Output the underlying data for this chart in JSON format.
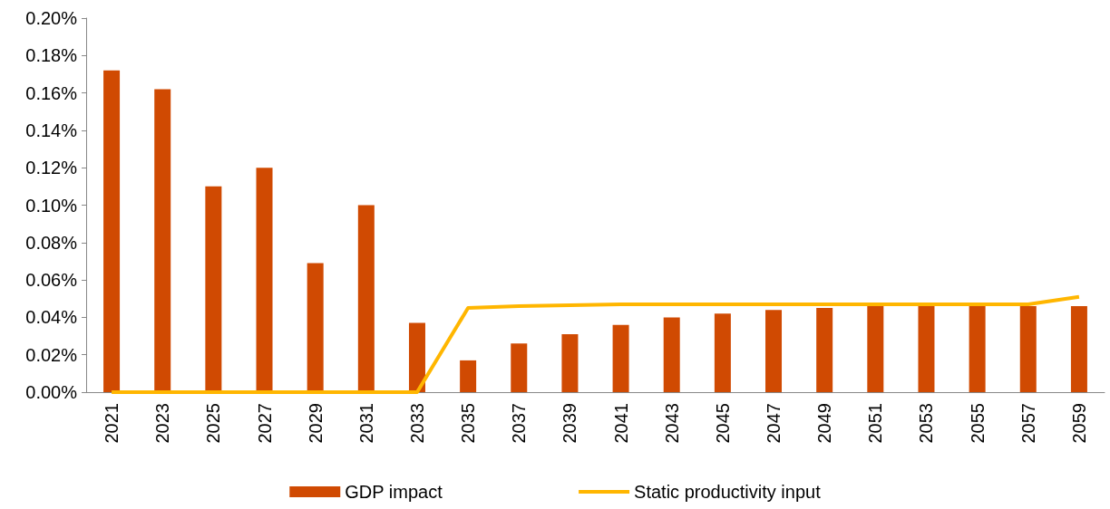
{
  "chart_data": {
    "type": "bar",
    "categories": [
      "2021",
      "2023",
      "2025",
      "2027",
      "2029",
      "2031",
      "2033",
      "2035",
      "2037",
      "2039",
      "2041",
      "2043",
      "2045",
      "2047",
      "2049",
      "2051",
      "2053",
      "2055",
      "2057",
      "2059"
    ],
    "series": [
      {
        "name": "GDP impact",
        "color": "#d04a02",
        "values": [
          0.172,
          0.162,
          0.11,
          0.12,
          0.069,
          0.1,
          0.037,
          0.017,
          0.026,
          0.031,
          0.036,
          0.04,
          0.042,
          0.044,
          0.045,
          0.046,
          0.046,
          0.046,
          0.046,
          0.046
        ]
      },
      {
        "name": "Static productivity input",
        "type": "line",
        "color": "#ffb600",
        "values": [
          0,
          0,
          0,
          0,
          0,
          0,
          0,
          0.045,
          0.046,
          0.0465,
          0.047,
          0.047,
          0.047,
          0.047,
          0.047,
          0.047,
          0.047,
          0.047,
          0.047,
          0.051
        ]
      }
    ],
    "ylim": [
      0,
      0.2
    ],
    "yticks": [
      {
        "value": 0,
        "label": "0.00%"
      },
      {
        "value": 0.02,
        "label": "0.02%"
      },
      {
        "value": 0.04,
        "label": "0.04%"
      },
      {
        "value": 0.06,
        "label": "0.06%"
      },
      {
        "value": 0.08,
        "label": "0.08%"
      },
      {
        "value": 0.1,
        "label": "0.10%"
      },
      {
        "value": 0.12,
        "label": "0.12%"
      },
      {
        "value": 0.14,
        "label": "0.14%"
      },
      {
        "value": 0.16,
        "label": "0.16%"
      },
      {
        "value": 0.18,
        "label": "0.18%"
      },
      {
        "value": 0.2,
        "label": "0.20%"
      }
    ],
    "grid": false,
    "legend": "bottom",
    "marker": "none"
  }
}
